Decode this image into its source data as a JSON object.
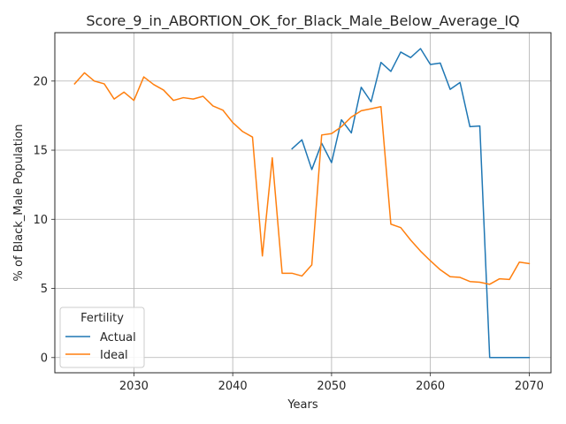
{
  "chart_data": {
    "type": "line",
    "title": "Score_9_in_ABORTION_OK_for_Black_Male_Below_Average_IQ",
    "xlabel": "Years",
    "ylabel": "% of Black_Male Population",
    "xlim": [
      2022,
      2072.2
    ],
    "ylim": [
      -1.1,
      23.5
    ],
    "xticks": [
      2030,
      2040,
      2050,
      2060,
      2070
    ],
    "yticks": [
      0,
      5,
      10,
      15,
      20
    ],
    "grid": true,
    "legend": {
      "title": "Fertility",
      "placement": "lower-left"
    },
    "series": [
      {
        "name": "Actual",
        "color": "#1f77b4",
        "x": [
          2046,
          2047,
          2048,
          2049,
          2050,
          2051,
          2052,
          2053,
          2054,
          2055,
          2056,
          2057,
          2058,
          2059,
          2060,
          2061,
          2062,
          2063,
          2064,
          2065,
          2066,
          2067,
          2068,
          2069,
          2070
        ],
        "y": [
          15.1,
          15.75,
          13.6,
          15.5,
          14.1,
          17.2,
          16.25,
          19.55,
          18.5,
          21.35,
          20.7,
          22.1,
          21.7,
          22.35,
          21.2,
          21.3,
          19.4,
          19.9,
          16.7,
          16.75,
          0,
          0,
          0,
          0,
          0
        ]
      },
      {
        "name": "Ideal",
        "color": "#ff7f0e",
        "x": [
          2024,
          2025,
          2026,
          2027,
          2028,
          2029,
          2030,
          2031,
          2032,
          2033,
          2034,
          2035,
          2036,
          2037,
          2038,
          2039,
          2040,
          2041,
          2042,
          2043,
          2044,
          2045,
          2046,
          2047,
          2048,
          2049,
          2050,
          2051,
          2052,
          2053,
          2054,
          2055,
          2056,
          2057,
          2058,
          2059,
          2060,
          2061,
          2062,
          2063,
          2064,
          2065,
          2066,
          2067,
          2068,
          2069,
          2070
        ],
        "y": [
          19.8,
          20.6,
          20.0,
          19.8,
          18.7,
          19.2,
          18.6,
          20.3,
          19.75,
          19.35,
          18.6,
          18.8,
          18.7,
          18.9,
          18.2,
          17.9,
          17.0,
          16.35,
          15.95,
          7.35,
          14.45,
          6.1,
          6.1,
          5.9,
          6.7,
          16.1,
          16.2,
          16.7,
          17.4,
          17.85,
          18.0,
          18.15,
          9.65,
          9.4,
          8.5,
          7.7,
          7.0,
          6.35,
          5.85,
          5.8,
          5.5,
          5.45,
          5.3,
          5.7,
          5.65,
          6.9,
          6.8
        ]
      }
    ]
  }
}
